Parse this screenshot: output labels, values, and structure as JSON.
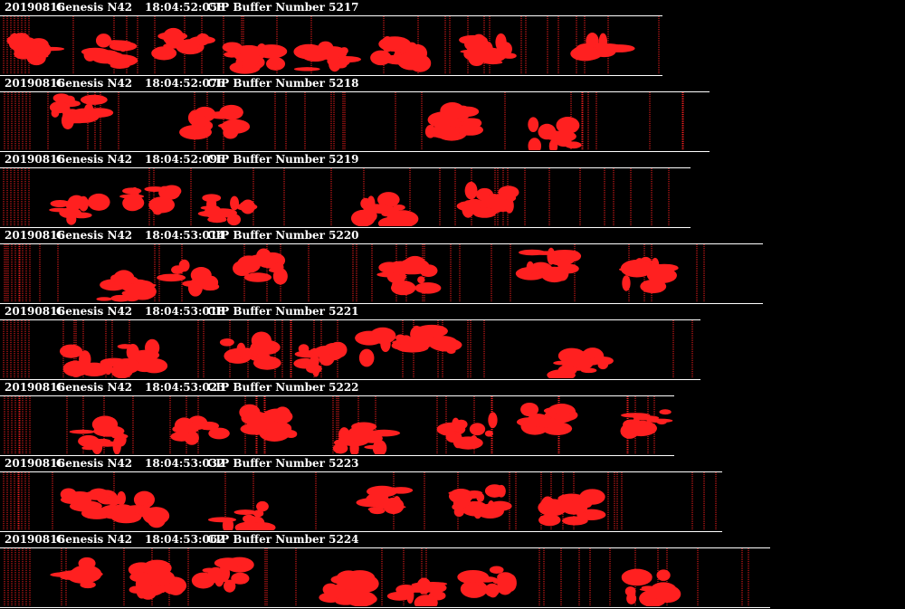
{
  "colors": {
    "background": "#000000",
    "particle": "#ff2020",
    "text": "#ffffff"
  },
  "buffers": [
    {
      "date": "20190816",
      "probe": "Genesis N42",
      "timestamp": "18:04:52:058",
      "label": "CIP Buffer Number 5217"
    },
    {
      "date": "20190816",
      "probe": "Genesis N42",
      "timestamp": "18:04:52:076",
      "label": "CIP Buffer Number 5218"
    },
    {
      "date": "20190816",
      "probe": "Genesis N42",
      "timestamp": "18:04:52:096",
      "label": "CIP Buffer Number 5219"
    },
    {
      "date": "20190816",
      "probe": "Genesis N42",
      "timestamp": "18:04:53:014",
      "label": "CIP Buffer Number 5220"
    },
    {
      "date": "20190816",
      "probe": "Genesis N42",
      "timestamp": "18:04:53:018",
      "label": "CIP Buffer Number 5221"
    },
    {
      "date": "20190816",
      "probe": "Genesis N42",
      "timestamp": "18:04:53:023",
      "label": "CIP Buffer Number 5222"
    },
    {
      "date": "20190816",
      "probe": "Genesis N42",
      "timestamp": "18:04:53:032",
      "label": "CIP Buffer Number 5223"
    },
    {
      "date": "20190816",
      "probe": "Genesis N42",
      "timestamp": "18:04:53:062",
      "label": "CIP Buffer Number 5224"
    }
  ]
}
